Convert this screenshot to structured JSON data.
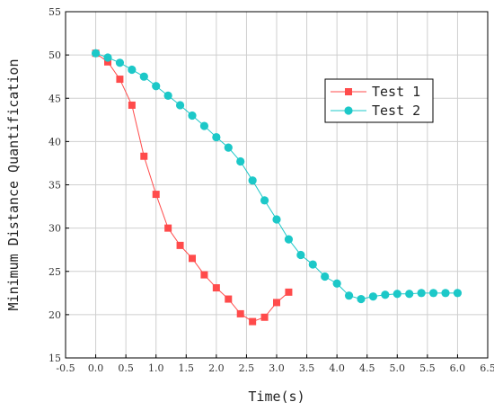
{
  "chart_data": {
    "type": "line",
    "xlabel": "Time(s)",
    "ylabel": "Minimum Distance Quantification",
    "xlim": [
      -0.5,
      6.5
    ],
    "ylim": [
      15,
      55
    ],
    "xticks": [
      -0.5,
      0.0,
      0.5,
      1.0,
      1.5,
      2.0,
      2.5,
      3.0,
      3.5,
      4.0,
      4.5,
      5.0,
      5.5,
      6.0,
      6.5
    ],
    "xtick_labels": [
      "-0.5",
      "0.0",
      "0.5",
      "1.0",
      "1.5",
      "2.0",
      "2.5",
      "3.0",
      "3.5",
      "4.0",
      "4.5",
      "5.0",
      "5.5",
      "6.0",
      "6.5"
    ],
    "yticks": [
      15,
      20,
      25,
      30,
      35,
      40,
      45,
      50,
      55
    ],
    "ytick_labels": [
      "15",
      "20",
      "25",
      "30",
      "35",
      "40",
      "45",
      "50",
      "55"
    ],
    "grid": true,
    "legend_position": "top-right",
    "series": [
      {
        "name": "Test 1",
        "color": "#ff4b4b",
        "marker": "square",
        "x": [
          0.0,
          0.2,
          0.4,
          0.6,
          0.8,
          1.0,
          1.2,
          1.4,
          1.6,
          1.8,
          2.0,
          2.2,
          2.4,
          2.6,
          2.8,
          3.0,
          3.2
        ],
        "y": [
          50.2,
          49.2,
          47.2,
          44.2,
          38.3,
          33.9,
          30.0,
          28.0,
          26.5,
          24.6,
          23.1,
          21.8,
          20.1,
          19.2,
          19.7,
          21.4,
          22.6
        ]
      },
      {
        "name": "Test 2",
        "color": "#1cc8c8",
        "marker": "circle",
        "x": [
          0.0,
          0.2,
          0.4,
          0.6,
          0.8,
          1.0,
          1.2,
          1.4,
          1.6,
          1.8,
          2.0,
          2.2,
          2.4,
          2.6,
          2.8,
          3.0,
          3.2,
          3.4,
          3.6,
          3.8,
          4.0,
          4.2,
          4.4,
          4.6,
          4.8,
          5.0,
          5.2,
          5.4,
          5.6,
          5.8,
          6.0
        ],
        "y": [
          50.2,
          49.7,
          49.1,
          48.3,
          47.5,
          46.4,
          45.3,
          44.2,
          43.0,
          41.8,
          40.5,
          39.3,
          37.7,
          35.5,
          33.2,
          31.0,
          28.7,
          26.9,
          25.8,
          24.4,
          23.6,
          22.2,
          21.8,
          22.1,
          22.3,
          22.4,
          22.4,
          22.5,
          22.5,
          22.5,
          22.5
        ]
      }
    ]
  }
}
